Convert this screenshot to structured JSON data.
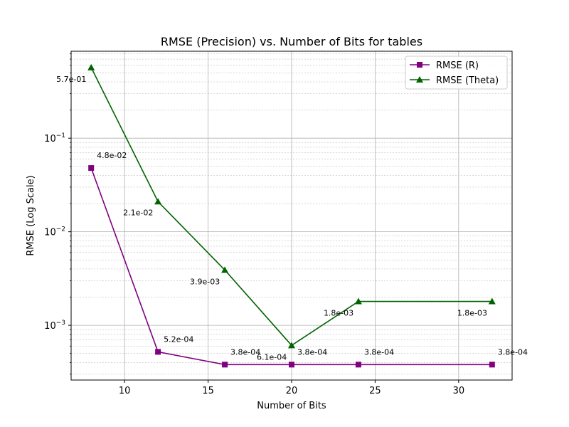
{
  "chart_data": {
    "type": "line",
    "title": "RMSE (Precision) vs. Number of Bits for tables",
    "xlabel": "Number of Bits",
    "ylabel": "RMSE (Log Scale)",
    "x": [
      8,
      12,
      16,
      20,
      24,
      32
    ],
    "xlim": [
      6.8,
      33.2
    ],
    "ylim": [
      0.00026,
      0.85
    ],
    "yscale": "log",
    "xticks": [
      10,
      15,
      20,
      25,
      30
    ],
    "yticks": [
      {
        "value": 0.001,
        "base": "10",
        "exp": "−3"
      },
      {
        "value": 0.01,
        "base": "10",
        "exp": "−2"
      },
      {
        "value": 0.1,
        "base": "10",
        "exp": "−1"
      }
    ],
    "grid": true,
    "legend_position": "top-right",
    "series": [
      {
        "name": "RMSE (R)",
        "color": "#800080",
        "marker": "square",
        "values": [
          0.048,
          0.00052,
          0.00038,
          0.00038,
          0.00038,
          0.00038
        ],
        "labels": [
          "4.8e-02",
          "5.2e-04",
          "3.8e-04",
          "3.8e-04",
          "3.8e-04",
          "3.8e-04"
        ]
      },
      {
        "name": "RMSE (Theta)",
        "color": "#006400",
        "marker": "triangle",
        "values": [
          0.57,
          0.021,
          0.0039,
          0.00061,
          0.0018,
          0.0018
        ],
        "labels": [
          "5.7e-01",
          "2.1e-02",
          "3.9e-03",
          "6.1e-04",
          "1.8e-03",
          "1.8e-03"
        ]
      }
    ]
  }
}
